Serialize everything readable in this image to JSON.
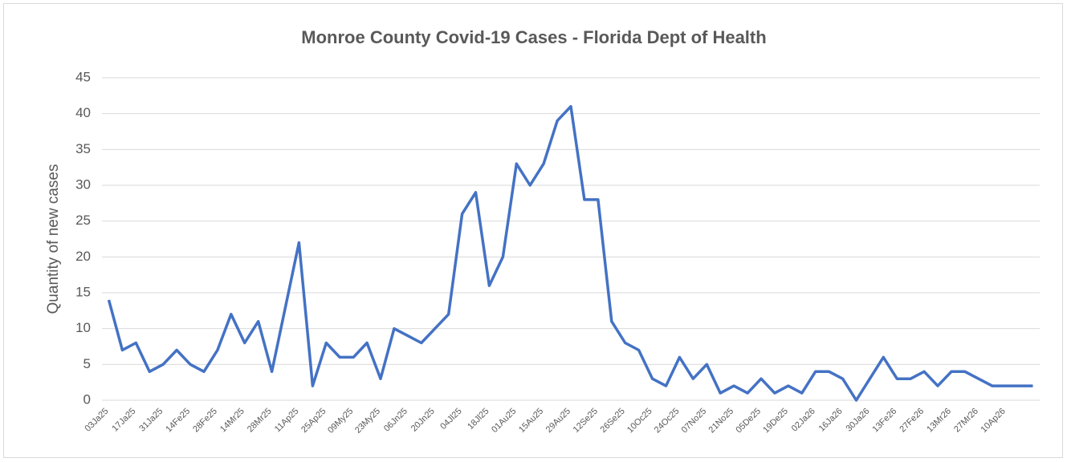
{
  "chart_data": {
    "type": "line",
    "title": "Monroe County Covid-19 Cases - Florida Dept of Health",
    "y_label": "Quantity of new cases",
    "categories": [
      "03Ja25",
      null,
      "17Ja25",
      null,
      "31Ja25",
      null,
      "14Fe25",
      null,
      "28Fe25",
      null,
      "14Mr25",
      null,
      "28Mr25",
      null,
      "11Ap25",
      null,
      "25Ap25",
      null,
      "09My25",
      null,
      "23My25",
      null,
      "06Jn25",
      null,
      "20Jn25",
      null,
      "04Jl25",
      null,
      "18Jl25",
      null,
      "01Au25",
      null,
      "15Au25",
      null,
      "29Au25",
      null,
      "12Se25",
      null,
      "26Se25",
      null,
      "10Oc25",
      null,
      "24Oc25",
      null,
      "07No25",
      null,
      "21No25",
      null,
      "05De25",
      null,
      "19De25",
      null,
      "02Ja26",
      null,
      "16Ja26",
      null,
      "30Ja26",
      null,
      "13Fe26",
      null,
      "27Fe26",
      null,
      "13Mr26",
      null,
      "27Mr26",
      null,
      "10Ap26",
      null,
      null
    ],
    "series": [
      {
        "name": "New cases",
        "color": "#4472c4",
        "values": [
          14,
          7,
          8,
          4,
          5,
          7,
          5,
          4,
          7,
          12,
          8,
          11,
          4,
          13,
          22,
          2,
          8,
          6,
          6,
          8,
          3,
          10,
          9,
          8,
          10,
          12,
          26,
          29,
          16,
          20,
          33,
          30,
          33,
          39,
          41,
          28,
          28,
          11,
          8,
          7,
          3,
          2,
          6,
          3,
          5,
          1,
          2,
          1,
          3,
          1,
          2,
          1,
          4,
          4,
          3,
          0,
          3,
          6,
          3,
          3,
          4,
          2,
          4,
          4,
          3,
          2,
          2,
          2,
          2
        ]
      }
    ],
    "ylim": [
      0,
      45
    ],
    "yticks": [
      0,
      5,
      10,
      15,
      20,
      25,
      30,
      35,
      40,
      45
    ],
    "grid": true
  }
}
